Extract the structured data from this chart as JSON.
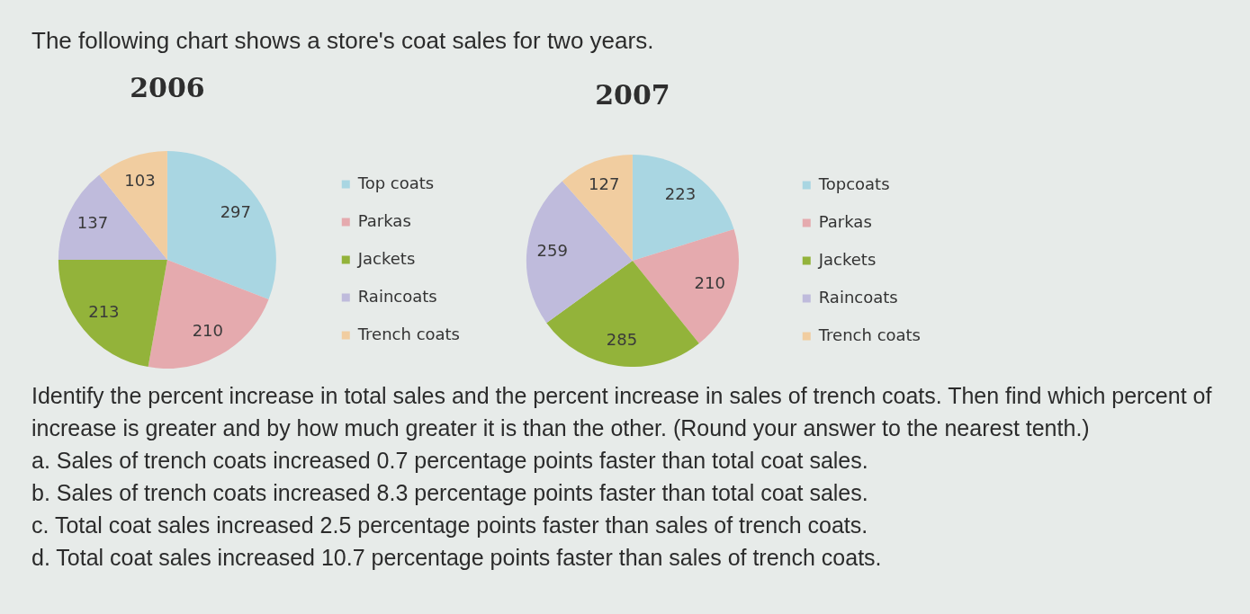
{
  "chart_data": [
    {
      "type": "pie",
      "title": "2006",
      "categories": [
        "Top coats",
        "Parkas",
        "Jackets",
        "Raincoats",
        "Trench coats"
      ],
      "values": [
        297,
        210,
        213,
        137,
        103
      ],
      "colors": [
        "#a9d6e2",
        "#e5aaae",
        "#93b33a",
        "#bfbbdc",
        "#f1cda0"
      ],
      "data_labels": true,
      "legend": "right",
      "annotations": [
        "The following chart shows a store's coat sales for two years.",
        "Identify the percent increase in total sales and the percent increase in sales of trench coats. Then find which percent of increase is greater and by how much greater it is than the other. (Round your answer to the nearest tenth.)",
        "a. Sales of trench coats increased 0.7 percentage points faster than total coat sales.",
        "b. Sales of trench coats increased 8.3 percentage points faster than total coat sales.",
        "c. Total coat sales increased 2.5 percentage points faster than sales of trench coats.",
        "d. Total coat sales increased 10.7 percentage points faster than sales of trench coats."
      ]
    },
    {
      "type": "pie",
      "title": "2007",
      "categories": [
        "Topcoats",
        "Parkas",
        "Jackets",
        "Raincoats",
        "Trench coats"
      ],
      "values": [
        223,
        210,
        285,
        259,
        127
      ],
      "colors": [
        "#a9d6e2",
        "#e5aaae",
        "#93b33a",
        "#bfbbdc",
        "#f1cda0"
      ],
      "data_labels": true,
      "legend": "right"
    }
  ]
}
